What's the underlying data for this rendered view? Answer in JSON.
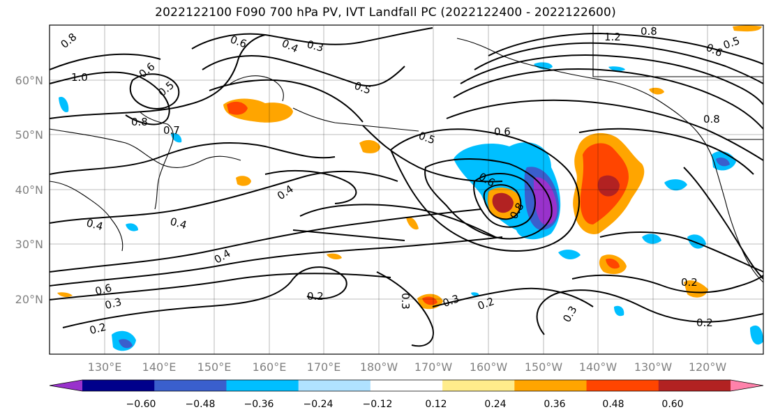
{
  "title": "2022122100 F090 700 hPa PV, IVT Landfall PC (2022122400 - 2022122600)",
  "lat_labels": [
    "60°N",
    "50°N",
    "40°N",
    "30°N",
    "20°N"
  ],
  "lon_labels": [
    "130°E",
    "140°E",
    "150°E",
    "160°E",
    "170°E",
    "180°W",
    "170°W",
    "160°W",
    "150°W",
    "140°W",
    "130°W",
    "120°W"
  ],
  "contour_labels": [
    "0.8",
    "1.0",
    "0.6",
    "0.5",
    "0.8",
    "0.7",
    "0.6",
    "0.4",
    "0.3",
    "0.5",
    "0.5",
    "0.6",
    "0.4",
    "0.4",
    "0.6",
    "0.8",
    "0.4",
    "0.4",
    "0.6",
    "0.3",
    "0.2",
    "0.2",
    "0.3",
    "0.3",
    "0.2",
    "0.3",
    "0.2",
    "0.2",
    "1.2",
    "0.8",
    "0.5",
    "0.6",
    "0.8"
  ],
  "colorbar": {
    "tick_labels": [
      "−0.60",
      "−0.48",
      "−0.36",
      "−0.24",
      "−0.12",
      "0.12",
      "0.24",
      "0.36",
      "0.48",
      "0.60"
    ],
    "colors": [
      "#9932cc",
      "#00008b",
      "#3a5fcd",
      "#00bfff",
      "#b0e2ff",
      "#ffffff",
      "#ffec8b",
      "#ffa500",
      "#ff4500",
      "#b22222",
      "#ff82ab"
    ]
  }
}
